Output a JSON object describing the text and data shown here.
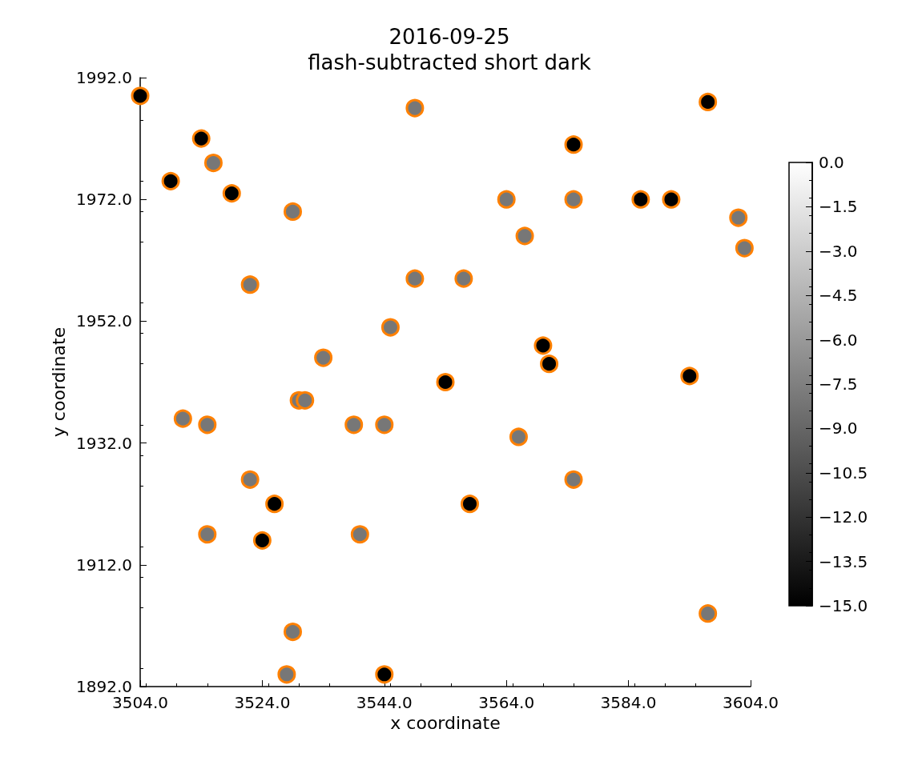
{
  "chart_data": {
    "type": "scatter",
    "title": "2016-09-25",
    "subtitle": "flash-subtracted short dark",
    "xlabel": "x coordinate",
    "ylabel": "y coordinate",
    "x": [
      3504,
      3549,
      3597,
      3514,
      3575,
      3516,
      3509,
      3519,
      3564,
      3575,
      3586,
      3591,
      3529,
      3602,
      3567,
      3603,
      3522,
      3549,
      3557,
      3545,
      3570,
      3534,
      3571,
      3554,
      3594,
      3530,
      3531,
      3511,
      3515,
      3539,
      3544,
      3566,
      3522,
      3575,
      3526,
      3558,
      3515,
      3540,
      3524,
      3597,
      3529,
      3528,
      3544
    ],
    "values": [
      1989,
      1987,
      1988,
      1982,
      1981,
      1978,
      1975,
      1973,
      1972,
      1972,
      1972,
      1972,
      1970,
      1969,
      1966,
      1964,
      1958,
      1959,
      1959,
      1951,
      1948,
      1946,
      1945,
      1942,
      1943,
      1939,
      1939,
      1936,
      1935,
      1935,
      1935,
      1933,
      1926,
      1926,
      1922,
      1922,
      1917,
      1917,
      1916,
      1904,
      1901,
      1894,
      1894
    ],
    "cvalues": [
      -15,
      -8,
      -15,
      -15,
      -15,
      -8,
      -15,
      -15,
      -8,
      -8,
      -15,
      -15,
      -8,
      -8,
      -8,
      -8,
      -8,
      -8,
      -8,
      -8,
      -15,
      -8,
      -15,
      -15,
      -15,
      -8,
      -8,
      -8,
      -8,
      -8,
      -8,
      -8,
      -8,
      -8,
      -15,
      -15,
      -8,
      -8,
      -15,
      -8,
      -8,
      -8,
      -15
    ],
    "color": "#ff8000",
    "marker": "circle",
    "grid": false,
    "xlim": [
      3504,
      3604
    ],
    "ylim": [
      1892,
      1992
    ],
    "xticks": [
      {
        "value": 3504,
        "label": "3504.0"
      },
      {
        "value": 3524,
        "label": "3524.0"
      },
      {
        "value": 3544,
        "label": "3544.0"
      },
      {
        "value": 3564,
        "label": "3564.0"
      },
      {
        "value": 3584,
        "label": "3584.0"
      },
      {
        "value": 3604,
        "label": "3604.0"
      }
    ],
    "yticks": [
      {
        "value": 1892,
        "label": "1892.0"
      },
      {
        "value": 1912,
        "label": "1912.0"
      },
      {
        "value": 1932,
        "label": "1932.0"
      },
      {
        "value": 1952,
        "label": "1952.0"
      },
      {
        "value": 1972,
        "label": "1972.0"
      },
      {
        "value": 1992,
        "label": "1992.0"
      }
    ],
    "clim": [
      -15,
      0
    ],
    "cticks": [
      {
        "value": 0,
        "label": "0.0"
      },
      {
        "value": -1.5,
        "label": "−1.5"
      },
      {
        "value": -3,
        "label": "−3.0"
      },
      {
        "value": -4.5,
        "label": "−4.5"
      },
      {
        "value": -6,
        "label": "−6.0"
      },
      {
        "value": -7.5,
        "label": "−7.5"
      },
      {
        "value": -9,
        "label": "−9.0"
      },
      {
        "value": -10.5,
        "label": "−10.5"
      },
      {
        "value": -12,
        "label": "−12.0"
      },
      {
        "value": -13.5,
        "label": "−13.5"
      },
      {
        "value": -15,
        "label": "−15.0"
      }
    ]
  }
}
